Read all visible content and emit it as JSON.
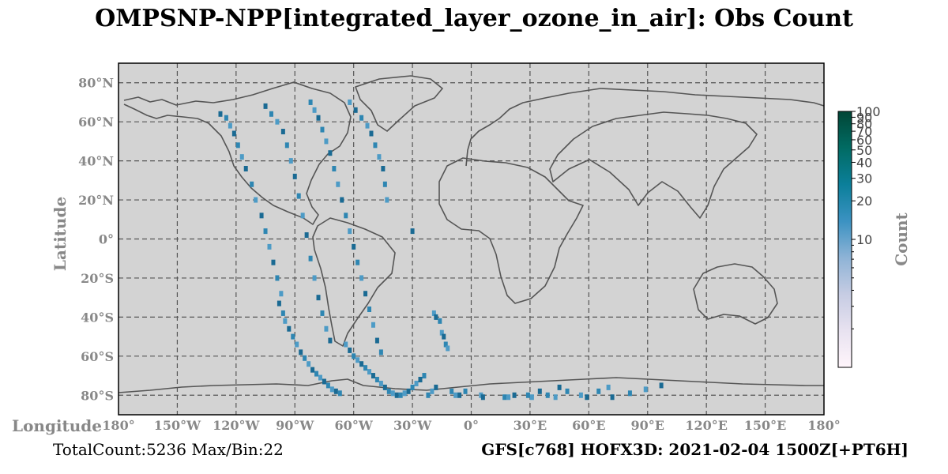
{
  "title": "OMPSNP-NPP[integrated_layer_ozone_in_air]: Obs Count",
  "footer": {
    "left": "TotalCount:5236 Max/Bin:22",
    "right": "GFS[c768] HOFX3D: 2021-02-04 1500Z[+PT6H]"
  },
  "colors": {
    "map_background": "#d3d3d3",
    "coastline": "#555555",
    "grid": "#555555",
    "bin_dark": "#1a6a93",
    "bin_mid": "#2e86b2",
    "bin_light": "#4d9bc6"
  },
  "chart_data": {
    "type": "heatmap",
    "xlabel": "Longitude",
    "ylabel": "Latitude",
    "xlim": [
      -180,
      180
    ],
    "ylim": [
      -90,
      90
    ],
    "grid": true,
    "x_ticks": [
      {
        "value": -180,
        "label": "180°"
      },
      {
        "value": -150,
        "label": "150°W"
      },
      {
        "value": -120,
        "label": "120°W"
      },
      {
        "value": -90,
        "label": "90°W"
      },
      {
        "value": -60,
        "label": "60°W"
      },
      {
        "value": -30,
        "label": "30°W"
      },
      {
        "value": 0,
        "label": "0°"
      },
      {
        "value": 30,
        "label": "30°E"
      },
      {
        "value": 60,
        "label": "60°E"
      },
      {
        "value": 90,
        "label": "90°E"
      },
      {
        "value": 120,
        "label": "120°E"
      },
      {
        "value": 150,
        "label": "150°E"
      },
      {
        "value": 180,
        "label": "180°"
      }
    ],
    "y_ticks": [
      {
        "value": 80,
        "label": "80°N"
      },
      {
        "value": 60,
        "label": "60°N"
      },
      {
        "value": 40,
        "label": "40°N"
      },
      {
        "value": 20,
        "label": "20°N"
      },
      {
        "value": 0,
        "label": "0°"
      },
      {
        "value": -20,
        "label": "20°S"
      },
      {
        "value": -40,
        "label": "40°S"
      },
      {
        "value": -60,
        "label": "60°S"
      },
      {
        "value": -80,
        "label": "80°S"
      }
    ],
    "colorbar": {
      "label": "Count",
      "scale": "log",
      "min": 1,
      "max": 100,
      "labeled_ticks": [
        10,
        20,
        30,
        40,
        50,
        60,
        70,
        80,
        90,
        100
      ],
      "minor_ticks": [
        2,
        3,
        4,
        5,
        6,
        7,
        8,
        9
      ],
      "colors": [
        "#fff5fb",
        "#e8e2f0",
        "#c6cce3",
        "#8eb3d6",
        "#3b92c2",
        "#0b7f9a",
        "#016b63",
        "#014636"
      ]
    },
    "swaths": [
      {
        "lon": [
          -128,
          -125,
          -123,
          -121,
          -119,
          -117,
          -115,
          -112,
          -110,
          -107,
          -105,
          -103,
          -101,
          -99,
          -97
        ],
        "lat": [
          64,
          62,
          58,
          54,
          48,
          42,
          36,
          28,
          20,
          12,
          4,
          -4,
          -12,
          -20,
          -28
        ]
      },
      {
        "lon": [
          -105,
          -102,
          -99,
          -96,
          -94,
          -92,
          -90,
          -88,
          -86,
          -84,
          -82,
          -80,
          -78,
          -76,
          -74,
          -72
        ],
        "lat": [
          68,
          64,
          60,
          55,
          48,
          40,
          32,
          22,
          12,
          2,
          -10,
          -20,
          -30,
          -38,
          -46,
          -52
        ]
      },
      {
        "lon": [
          -82,
          -80,
          -78,
          -76,
          -74,
          -72,
          -70,
          -68,
          -66,
          -64,
          -62,
          -60,
          -58,
          -56,
          -54,
          -52,
          -50,
          -48,
          -46
        ],
        "lat": [
          70,
          66,
          62,
          56,
          50,
          44,
          36,
          28,
          20,
          12,
          4,
          -4,
          -12,
          -20,
          -28,
          -36,
          -44,
          -52,
          -58
        ]
      },
      {
        "lon": [
          -62,
          -59,
          -56,
          -53,
          -51,
          -49,
          -47,
          -45,
          -44,
          -43
        ],
        "lat": [
          70,
          66,
          62,
          58,
          54,
          48,
          42,
          36,
          28,
          20
        ]
      },
      {
        "lon": [
          -98,
          -96,
          -95,
          -93,
          -91,
          -89,
          -87,
          -85,
          -83,
          -81,
          -79,
          -77,
          -75,
          -73,
          -71,
          -69,
          -67
        ],
        "lat": [
          -33,
          -38,
          -42,
          -46,
          -50,
          -54,
          -58,
          -61,
          -64,
          -67,
          -69,
          -71,
          -73,
          -75,
          -77,
          -78,
          -79
        ]
      },
      {
        "lon": [
          -64,
          -62,
          -60,
          -58,
          -56,
          -54,
          -52,
          -50,
          -48,
          -46,
          -44,
          -42,
          -40,
          -38,
          -36,
          -34,
          -32,
          -30,
          -28,
          -26,
          -24
        ],
        "lat": [
          -54,
          -57,
          -60,
          -62,
          -64,
          -66,
          -68,
          -70,
          -72,
          -74,
          -76,
          -78,
          -79,
          -80,
          -80,
          -79,
          -78,
          -76,
          -74,
          -72,
          -70
        ]
      },
      {
        "lon": [
          -19,
          -18,
          -16,
          -15,
          -14,
          -13,
          -12
        ],
        "lat": [
          -38,
          -40,
          -42,
          -48,
          -50,
          -54,
          -56
        ]
      }
    ],
    "scatter_bins": [
      {
        "lon": -30,
        "lat": 4
      },
      {
        "lon": -22,
        "lat": -80
      },
      {
        "lon": -20,
        "lat": -78
      },
      {
        "lon": -18,
        "lat": -76
      },
      {
        "lon": -10,
        "lat": -78
      },
      {
        "lon": -8,
        "lat": -80
      },
      {
        "lon": -6,
        "lat": -80
      },
      {
        "lon": -3,
        "lat": -78
      },
      {
        "lon": 5,
        "lat": -80
      },
      {
        "lon": 6,
        "lat": -81
      },
      {
        "lon": 17,
        "lat": -81
      },
      {
        "lon": 19,
        "lat": -81
      },
      {
        "lon": 22,
        "lat": -80
      },
      {
        "lon": 29,
        "lat": -80
      },
      {
        "lon": 31,
        "lat": -81
      },
      {
        "lon": 35,
        "lat": -78
      },
      {
        "lon": 39,
        "lat": -80
      },
      {
        "lon": 43,
        "lat": -81
      },
      {
        "lon": 45,
        "lat": -76
      },
      {
        "lon": 49,
        "lat": -78
      },
      {
        "lon": 56,
        "lat": -80
      },
      {
        "lon": 59,
        "lat": -81
      },
      {
        "lon": 65,
        "lat": -78
      },
      {
        "lon": 70,
        "lat": -76
      },
      {
        "lon": 72,
        "lat": -81
      },
      {
        "lon": 81,
        "lat": -79
      },
      {
        "lon": 89,
        "lat": -77
      },
      {
        "lon": 97,
        "lat": -75
      }
    ]
  }
}
